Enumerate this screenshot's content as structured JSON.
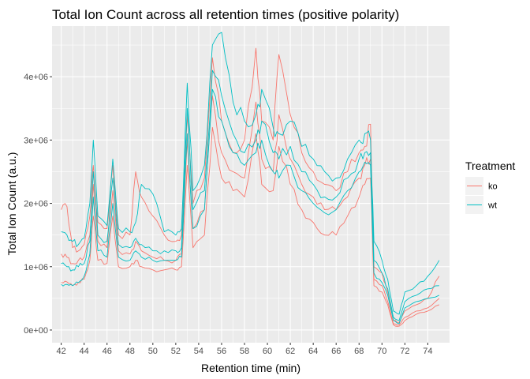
{
  "chart_data": {
    "type": "line",
    "title": "Total Ion Count across all retention times (positive polarity)",
    "xlabel": "Retention time (min)",
    "ylabel": "Total Ion Count (a.u.)",
    "xlim": [
      41.2,
      75.9
    ],
    "ylim": [
      -200000,
      4800000
    ],
    "x_ticks": [
      42,
      44,
      46,
      48,
      50,
      52,
      54,
      56,
      58,
      60,
      62,
      64,
      66,
      68,
      70,
      72,
      74
    ],
    "y_ticks": [
      0,
      1000000,
      2000000,
      3000000,
      4000000
    ],
    "y_tick_labels": [
      "0e+00",
      "1e+06",
      "2e+06",
      "3e+06",
      "4e+06"
    ],
    "grid": true,
    "legend": {
      "title": "Treatment",
      "position": "right",
      "entries": [
        {
          "label": "ko",
          "color": "#F8766D"
        },
        {
          "label": "wt",
          "color": "#00BFC4"
        }
      ]
    },
    "series": [
      {
        "group": "ko",
        "color": "#F8766D",
        "values": [
          [
            42.0,
            1900000
          ],
          [
            42.5,
            1950000
          ],
          [
            43.0,
            1300000
          ],
          [
            43.5,
            1250000
          ],
          [
            44.0,
            1350000
          ],
          [
            44.5,
            1800000
          ],
          [
            44.8,
            2600000
          ],
          [
            45.2,
            1700000
          ],
          [
            46.0,
            1600000
          ],
          [
            46.5,
            2600000
          ],
          [
            47.0,
            1500000
          ],
          [
            48.0,
            1500000
          ],
          [
            48.5,
            2500000
          ],
          [
            49.0,
            2100000
          ],
          [
            50.0,
            1800000
          ],
          [
            51.0,
            1500000
          ],
          [
            52.0,
            1400000
          ],
          [
            52.5,
            1500000
          ],
          [
            53.0,
            3400000
          ],
          [
            53.5,
            2000000
          ],
          [
            54.5,
            2400000
          ],
          [
            55.2,
            4300000
          ],
          [
            56.0,
            3300000
          ],
          [
            57.0,
            2800000
          ],
          [
            58.0,
            3000000
          ],
          [
            59.0,
            4450000
          ],
          [
            59.5,
            3300000
          ],
          [
            60.5,
            3000000
          ],
          [
            61.0,
            4350000
          ],
          [
            62.0,
            3400000
          ],
          [
            63.0,
            2800000
          ],
          [
            64.0,
            2500000
          ],
          [
            65.0,
            2300000
          ],
          [
            66.0,
            2200000
          ],
          [
            67.0,
            2500000
          ],
          [
            68.0,
            2800000
          ],
          [
            68.5,
            2900000
          ],
          [
            69.0,
            3250000
          ],
          [
            69.3,
            1000000
          ],
          [
            70.0,
            900000
          ],
          [
            70.5,
            600000
          ],
          [
            71.0,
            150000
          ],
          [
            71.5,
            120000
          ],
          [
            72.0,
            300000
          ],
          [
            73.0,
            400000
          ],
          [
            74.0,
            500000
          ],
          [
            75.0,
            850000
          ]
        ]
      },
      {
        "group": "ko",
        "color": "#F8766D",
        "values": [
          [
            42.0,
            1200000
          ],
          [
            42.5,
            1150000
          ],
          [
            43.0,
            1050000
          ],
          [
            43.5,
            1100000
          ],
          [
            44.0,
            1150000
          ],
          [
            44.5,
            1500000
          ],
          [
            44.8,
            2300000
          ],
          [
            45.2,
            1400000
          ],
          [
            46.0,
            1300000
          ],
          [
            46.5,
            2200000
          ],
          [
            47.0,
            1250000
          ],
          [
            48.0,
            1200000
          ],
          [
            48.5,
            1400000
          ],
          [
            49.0,
            1250000
          ],
          [
            50.0,
            1150000
          ],
          [
            51.0,
            1100000
          ],
          [
            52.0,
            1100000
          ],
          [
            52.5,
            1200000
          ],
          [
            53.0,
            3000000
          ],
          [
            53.5,
            1600000
          ],
          [
            54.5,
            1900000
          ],
          [
            55.2,
            3700000
          ],
          [
            56.0,
            2800000
          ],
          [
            57.0,
            2500000
          ],
          [
            58.0,
            2400000
          ],
          [
            59.0,
            3600000
          ],
          [
            59.5,
            2700000
          ],
          [
            60.5,
            2500000
          ],
          [
            61.0,
            3400000
          ],
          [
            62.0,
            2700000
          ],
          [
            63.0,
            2300000
          ],
          [
            64.0,
            2100000
          ],
          [
            65.0,
            1900000
          ],
          [
            66.0,
            1900000
          ],
          [
            67.0,
            2100000
          ],
          [
            68.0,
            2400000
          ],
          [
            68.5,
            2600000
          ],
          [
            69.0,
            2700000
          ],
          [
            69.3,
            800000
          ],
          [
            70.0,
            700000
          ],
          [
            70.5,
            450000
          ],
          [
            71.0,
            100000
          ],
          [
            71.5,
            80000
          ],
          [
            72.0,
            200000
          ],
          [
            73.0,
            300000
          ],
          [
            74.0,
            350000
          ],
          [
            75.0,
            500000
          ]
        ]
      },
      {
        "group": "ko",
        "color": "#F8766D",
        "values": [
          [
            42.0,
            750000
          ],
          [
            42.5,
            760000
          ],
          [
            43.0,
            700000
          ],
          [
            43.5,
            750000
          ],
          [
            44.0,
            800000
          ],
          [
            44.5,
            1100000
          ],
          [
            44.8,
            1800000
          ],
          [
            45.2,
            1100000
          ],
          [
            46.0,
            1050000
          ],
          [
            46.5,
            1800000
          ],
          [
            47.0,
            1000000
          ],
          [
            48.0,
            1000000
          ],
          [
            48.5,
            1100000
          ],
          [
            49.0,
            1000000
          ],
          [
            50.0,
            950000
          ],
          [
            51.0,
            950000
          ],
          [
            52.0,
            950000
          ],
          [
            52.5,
            1000000
          ],
          [
            53.0,
            2600000
          ],
          [
            53.5,
            1300000
          ],
          [
            54.5,
            1500000
          ],
          [
            55.2,
            3200000
          ],
          [
            56.0,
            2400000
          ],
          [
            57.0,
            2200000
          ],
          [
            58.0,
            2100000
          ],
          [
            59.0,
            3100000
          ],
          [
            59.5,
            2300000
          ],
          [
            60.5,
            2200000
          ],
          [
            61.0,
            2900000
          ],
          [
            62.0,
            2300000
          ],
          [
            63.0,
            1900000
          ],
          [
            64.0,
            1700000
          ],
          [
            65.0,
            1500000
          ],
          [
            66.0,
            1500000
          ],
          [
            67.0,
            1800000
          ],
          [
            68.0,
            2100000
          ],
          [
            68.5,
            2300000
          ],
          [
            69.0,
            2400000
          ],
          [
            69.3,
            700000
          ],
          [
            70.0,
            600000
          ],
          [
            70.5,
            400000
          ],
          [
            71.0,
            80000
          ],
          [
            71.5,
            60000
          ],
          [
            72.0,
            150000
          ],
          [
            73.0,
            250000
          ],
          [
            74.0,
            300000
          ],
          [
            75.0,
            400000
          ]
        ]
      },
      {
        "group": "wt",
        "color": "#00BFC4",
        "values": [
          [
            42.0,
            1550000
          ],
          [
            42.5,
            1500000
          ],
          [
            43.0,
            1400000
          ],
          [
            43.5,
            1350000
          ],
          [
            44.0,
            1450000
          ],
          [
            44.5,
            2000000
          ],
          [
            44.8,
            3000000
          ],
          [
            45.2,
            1800000
          ],
          [
            46.0,
            1650000
          ],
          [
            46.5,
            2700000
          ],
          [
            47.0,
            1600000
          ],
          [
            48.0,
            1550000
          ],
          [
            48.5,
            1700000
          ],
          [
            49.0,
            2300000
          ],
          [
            50.0,
            2150000
          ],
          [
            51.0,
            1550000
          ],
          [
            52.0,
            1500000
          ],
          [
            52.5,
            1600000
          ],
          [
            53.0,
            3900000
          ],
          [
            53.5,
            2200000
          ],
          [
            54.5,
            2600000
          ],
          [
            55.2,
            4500000
          ],
          [
            56.0,
            4700000
          ],
          [
            57.0,
            3600000
          ],
          [
            58.0,
            3300000
          ],
          [
            59.0,
            3400000
          ],
          [
            59.5,
            3800000
          ],
          [
            60.5,
            3200000
          ],
          [
            61.0,
            3100000
          ],
          [
            62.0,
            3300000
          ],
          [
            63.0,
            2900000
          ],
          [
            64.0,
            2700000
          ],
          [
            65.0,
            2500000
          ],
          [
            66.0,
            2400000
          ],
          [
            67.0,
            2700000
          ],
          [
            68.0,
            3000000
          ],
          [
            68.5,
            3100000
          ],
          [
            69.0,
            3000000
          ],
          [
            69.3,
            1400000
          ],
          [
            70.0,
            1100000
          ],
          [
            70.5,
            800000
          ],
          [
            71.0,
            300000
          ],
          [
            71.5,
            250000
          ],
          [
            72.0,
            600000
          ],
          [
            73.0,
            700000
          ],
          [
            74.0,
            850000
          ],
          [
            75.0,
            1100000
          ]
        ]
      },
      {
        "group": "wt",
        "color": "#00BFC4",
        "values": [
          [
            42.0,
            1050000
          ],
          [
            42.5,
            1000000
          ],
          [
            43.0,
            950000
          ],
          [
            43.5,
            1000000
          ],
          [
            44.0,
            1050000
          ],
          [
            44.5,
            1400000
          ],
          [
            44.8,
            2500000
          ],
          [
            45.2,
            1500000
          ],
          [
            46.0,
            1400000
          ],
          [
            46.5,
            2400000
          ],
          [
            47.0,
            1350000
          ],
          [
            48.0,
            1300000
          ],
          [
            48.5,
            1450000
          ],
          [
            49.0,
            1350000
          ],
          [
            50.0,
            1250000
          ],
          [
            51.0,
            1250000
          ],
          [
            52.0,
            1250000
          ],
          [
            52.5,
            1300000
          ],
          [
            53.0,
            3500000
          ],
          [
            53.5,
            1900000
          ],
          [
            54.5,
            2200000
          ],
          [
            55.2,
            4100000
          ],
          [
            56.0,
            3700000
          ],
          [
            57.0,
            3100000
          ],
          [
            58.0,
            2800000
          ],
          [
            59.0,
            3000000
          ],
          [
            59.5,
            3300000
          ],
          [
            60.5,
            2800000
          ],
          [
            61.0,
            2700000
          ],
          [
            62.0,
            2900000
          ],
          [
            63.0,
            2500000
          ],
          [
            64.0,
            2300000
          ],
          [
            65.0,
            2100000
          ],
          [
            66.0,
            2100000
          ],
          [
            67.0,
            2400000
          ],
          [
            68.0,
            2700000
          ],
          [
            68.5,
            2800000
          ],
          [
            69.0,
            2800000
          ],
          [
            69.3,
            1100000
          ],
          [
            70.0,
            900000
          ],
          [
            70.5,
            650000
          ],
          [
            71.0,
            200000
          ],
          [
            71.5,
            150000
          ],
          [
            72.0,
            450000
          ],
          [
            73.0,
            550000
          ],
          [
            74.0,
            650000
          ],
          [
            75.0,
            700000
          ]
        ]
      },
      {
        "group": "wt",
        "color": "#00BFC4",
        "values": [
          [
            42.0,
            720000
          ],
          [
            42.5,
            720000
          ],
          [
            43.0,
            700000
          ],
          [
            43.5,
            750000
          ],
          [
            44.0,
            850000
          ],
          [
            44.5,
            1200000
          ],
          [
            44.8,
            2100000
          ],
          [
            45.2,
            1250000
          ],
          [
            46.0,
            1150000
          ],
          [
            46.5,
            2000000
          ],
          [
            47.0,
            1150000
          ],
          [
            48.0,
            1100000
          ],
          [
            48.5,
            1250000
          ],
          [
            49.0,
            1150000
          ],
          [
            50.0,
            1100000
          ],
          [
            51.0,
            1100000
          ],
          [
            52.0,
            1100000
          ],
          [
            52.5,
            1150000
          ],
          [
            53.0,
            3100000
          ],
          [
            53.5,
            1600000
          ],
          [
            54.5,
            1900000
          ],
          [
            55.2,
            3800000
          ],
          [
            56.0,
            3300000
          ],
          [
            57.0,
            2800000
          ],
          [
            58.0,
            2600000
          ],
          [
            59.0,
            2800000
          ],
          [
            59.5,
            3000000
          ],
          [
            60.5,
            2500000
          ],
          [
            61.0,
            2400000
          ],
          [
            62.0,
            2600000
          ],
          [
            63.0,
            2200000
          ],
          [
            64.0,
            2000000
          ],
          [
            65.0,
            1850000
          ],
          [
            66.0,
            1900000
          ],
          [
            67.0,
            2200000
          ],
          [
            68.0,
            2500000
          ],
          [
            68.5,
            2650000
          ],
          [
            69.0,
            2600000
          ],
          [
            69.3,
            900000
          ],
          [
            70.0,
            750000
          ],
          [
            70.5,
            550000
          ],
          [
            71.0,
            150000
          ],
          [
            71.5,
            100000
          ],
          [
            72.0,
            350000
          ],
          [
            73.0,
            450000
          ],
          [
            74.0,
            500000
          ],
          [
            75.0,
            550000
          ]
        ]
      }
    ]
  }
}
